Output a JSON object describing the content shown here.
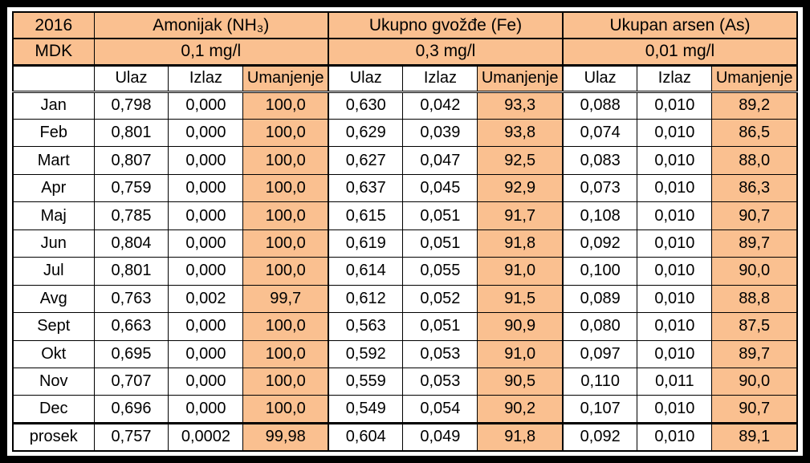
{
  "colors": {
    "accent_fill": "#FAC090",
    "cell_fill": "#FFFFFF",
    "border": "#000000",
    "frame": "#000000"
  },
  "chart_data": {
    "type": "table",
    "title": "2016",
    "corner_label": "2016",
    "mdk_label": "MDK",
    "groups": [
      {
        "name": "Amonijak (NH₃)",
        "mdk": "0,1 mg/l"
      },
      {
        "name": "Ukupno gvožđe (Fe)",
        "mdk": "0,3 mg/l"
      },
      {
        "name": "Ukupan arsen (As)",
        "mdk": "0,01 mg/l"
      }
    ],
    "sub_columns": [
      "Ulaz",
      "Izlaz",
      "Umanjenje"
    ],
    "rows": [
      {
        "label": "Jan",
        "values": [
          "0,798",
          "0,000",
          "100,0",
          "0,630",
          "0,042",
          "93,3",
          "0,088",
          "0,010",
          "89,2"
        ]
      },
      {
        "label": "Feb",
        "values": [
          "0,801",
          "0,000",
          "100,0",
          "0,629",
          "0,039",
          "93,8",
          "0,074",
          "0,010",
          "86,5"
        ]
      },
      {
        "label": "Mart",
        "values": [
          "0,807",
          "0,000",
          "100,0",
          "0,627",
          "0,047",
          "92,5",
          "0,083",
          "0,010",
          "88,0"
        ]
      },
      {
        "label": "Apr",
        "values": [
          "0,759",
          "0,000",
          "100,0",
          "0,637",
          "0,045",
          "92,9",
          "0,073",
          "0,010",
          "86,3"
        ]
      },
      {
        "label": "Maj",
        "values": [
          "0,785",
          "0,000",
          "100,0",
          "0,615",
          "0,051",
          "91,7",
          "0,108",
          "0,010",
          "90,7"
        ]
      },
      {
        "label": "Jun",
        "values": [
          "0,804",
          "0,000",
          "100,0",
          "0,619",
          "0,051",
          "91,8",
          "0,092",
          "0,010",
          "89,7"
        ]
      },
      {
        "label": "Jul",
        "values": [
          "0,801",
          "0,000",
          "100,0",
          "0,614",
          "0,055",
          "91,0",
          "0,100",
          "0,010",
          "90,0"
        ]
      },
      {
        "label": "Avg",
        "values": [
          "0,763",
          "0,002",
          "99,7",
          "0,612",
          "0,052",
          "91,5",
          "0,089",
          "0,010",
          "88,8"
        ]
      },
      {
        "label": "Sept",
        "values": [
          "0,663",
          "0,000",
          "100,0",
          "0,563",
          "0,051",
          "90,9",
          "0,080",
          "0,010",
          "87,5"
        ]
      },
      {
        "label": "Okt",
        "values": [
          "0,695",
          "0,000",
          "100,0",
          "0,592",
          "0,053",
          "91,0",
          "0,097",
          "0,010",
          "89,7"
        ]
      },
      {
        "label": "Nov",
        "values": [
          "0,707",
          "0,000",
          "100,0",
          "0,559",
          "0,053",
          "90,5",
          "0,110",
          "0,011",
          "90,0"
        ]
      },
      {
        "label": "Dec",
        "values": [
          "0,696",
          "0,000",
          "100,0",
          "0,549",
          "0,054",
          "90,2",
          "0,107",
          "0,010",
          "90,7"
        ]
      },
      {
        "label": "prosek",
        "values": [
          "0,757",
          "0,0002",
          "99,98",
          "0,604",
          "0,049",
          "91,8",
          "0,092",
          "0,010",
          "89,1"
        ]
      }
    ]
  }
}
